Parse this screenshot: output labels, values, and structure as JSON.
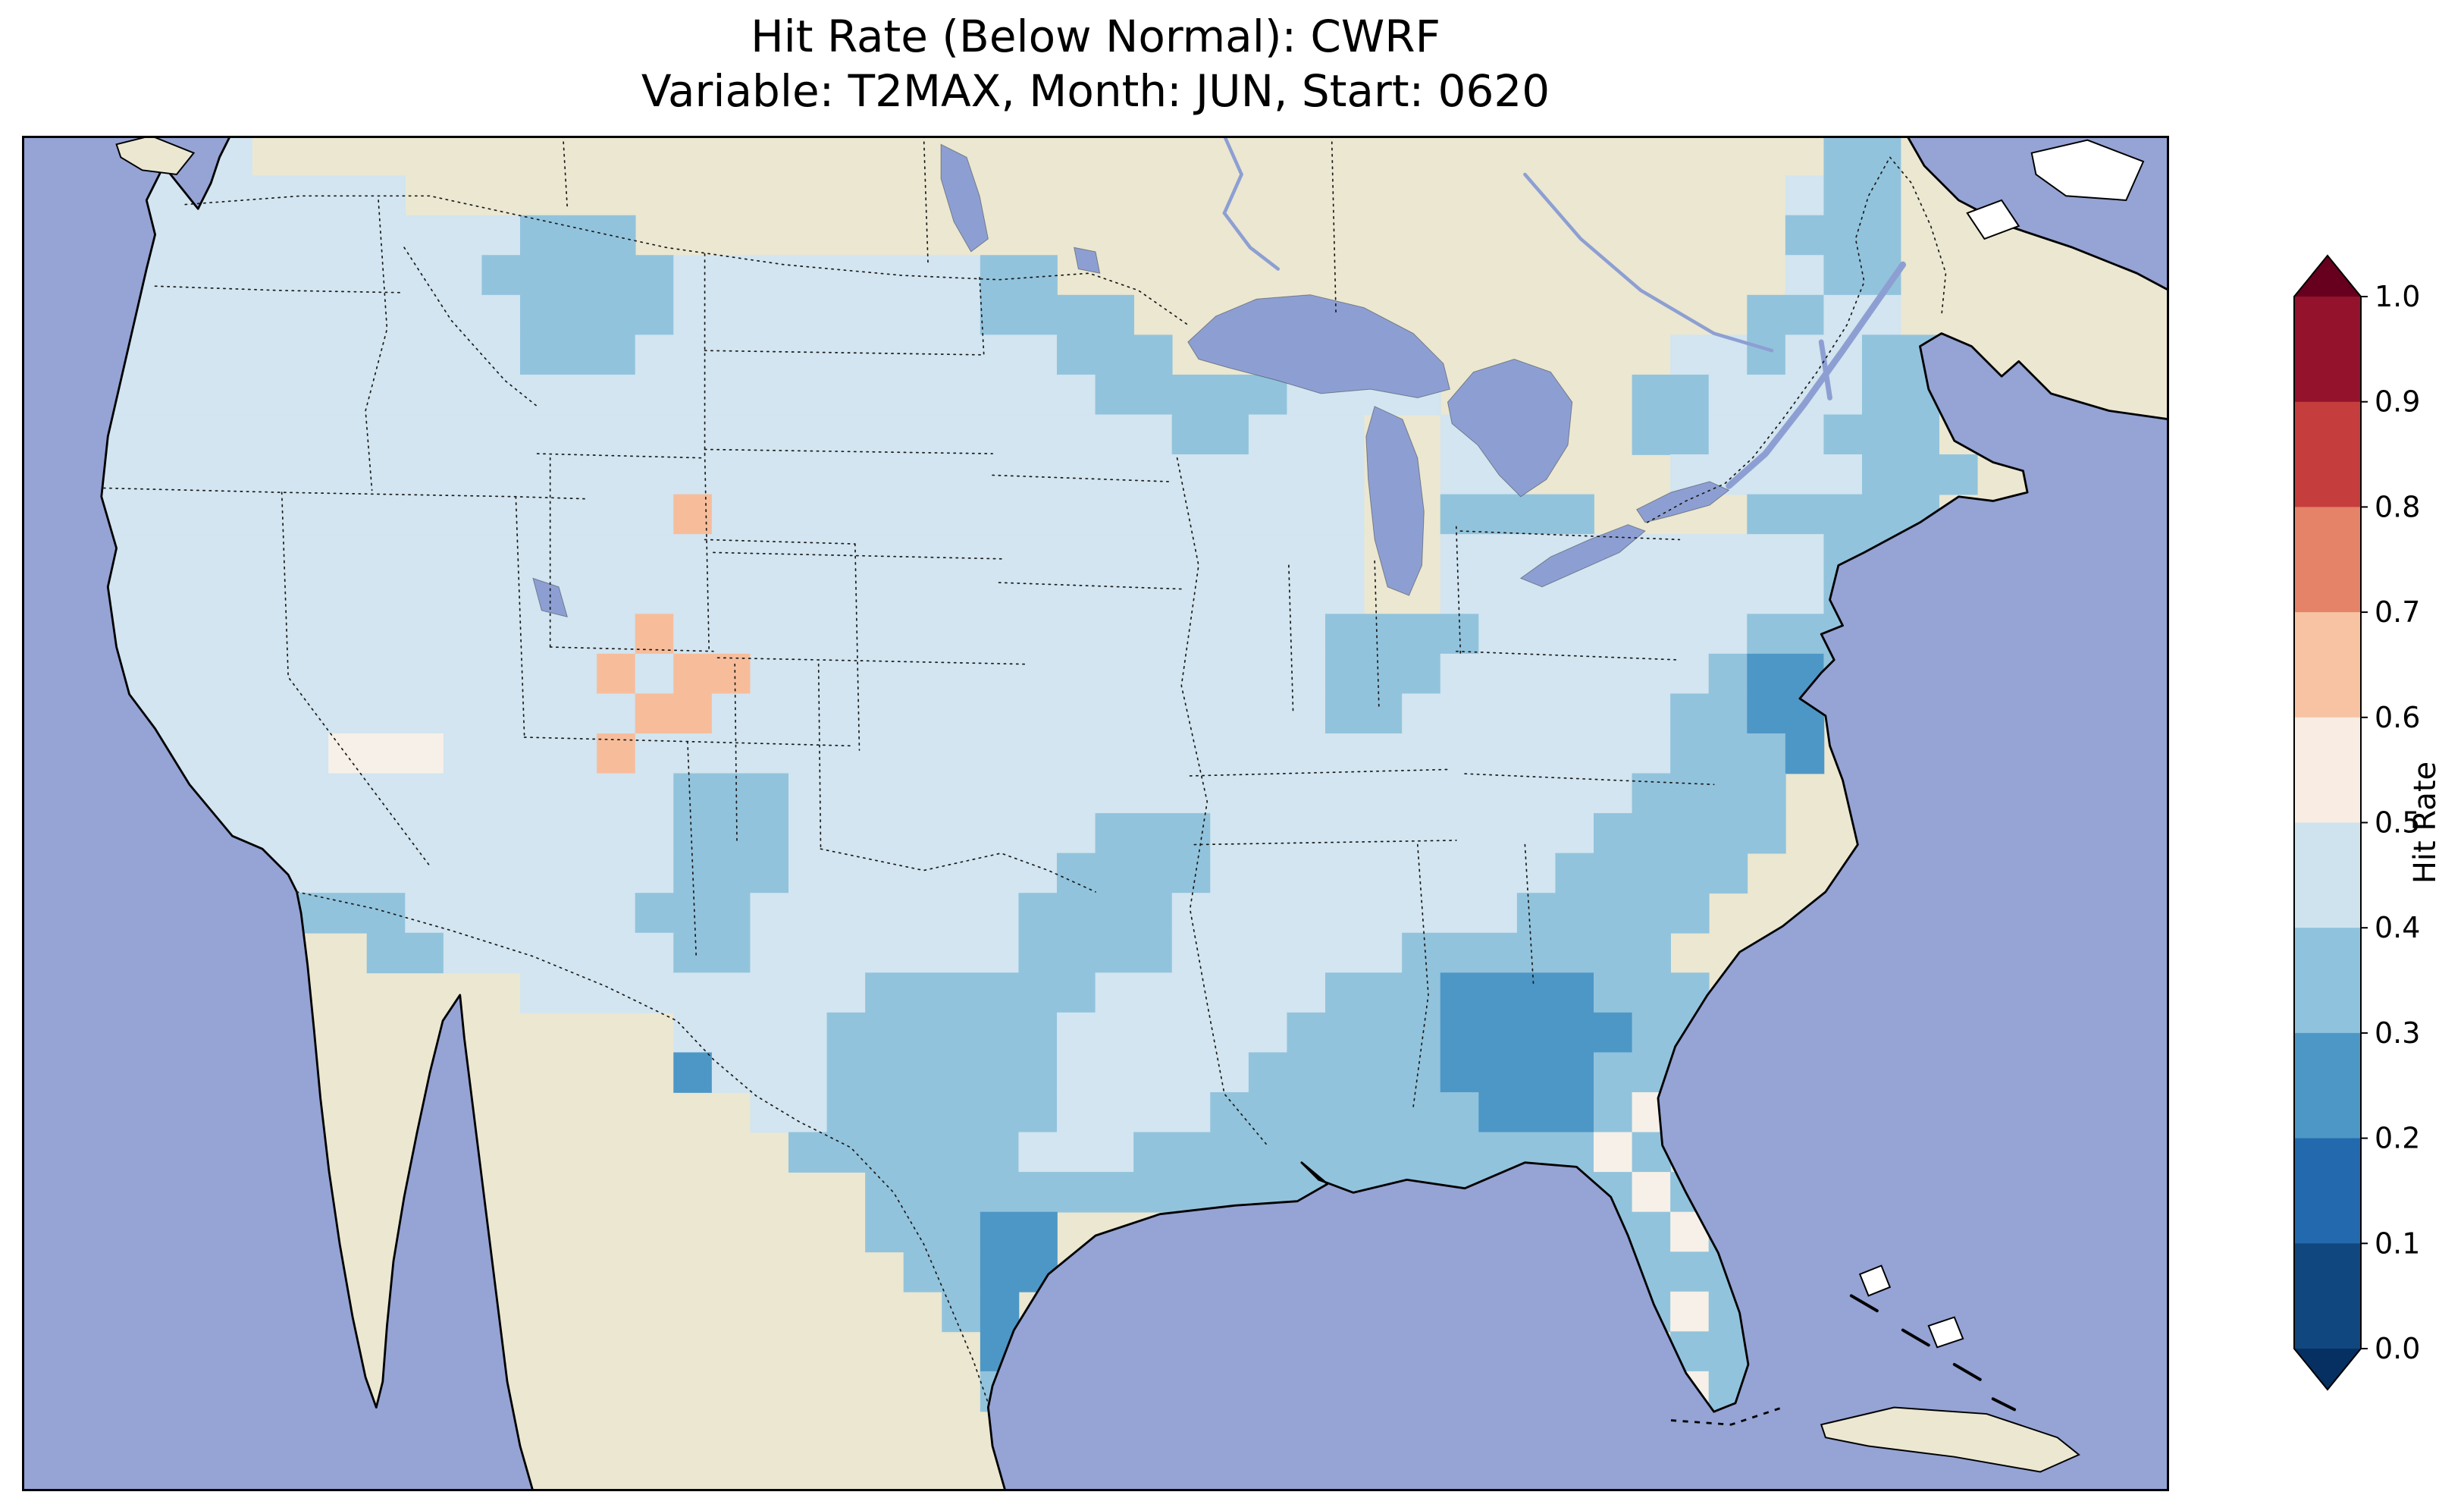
{
  "figure": {
    "title_line1": "Hit Rate (Below Normal): CWRF",
    "title_line2": "Variable: T2MAX, Month: JUN, Start: 0620"
  },
  "colorbar": {
    "label": "Hit Rate",
    "tick_labels_top_to_bottom": [
      "1.0",
      "0.9",
      "0.8",
      "0.7",
      "0.6",
      "0.5",
      "0.4",
      "0.3",
      "0.2",
      "0.1",
      "0.0"
    ],
    "band_colors_top_to_bottom": [
      "#94122b",
      "#c53e3d",
      "#e58368",
      "#f8c3a2",
      "#f9ece2",
      "#cfe3ef",
      "#8fc2dd",
      "#4d97c6",
      "#2369ad",
      "#11477f"
    ],
    "extend_over_color": "#67001f",
    "extend_under_color": "#053061"
  },
  "map": {
    "ocean_color": "#95a3d5",
    "land_color": "#ebe7d1",
    "lake_color": "#8d9fd2",
    "border_color": "#1a1a1a",
    "cell_palette": {
      "a": "#d2e5f0",
      "b": "#92c3dc",
      "c": "#4d97c6",
      "w": "#f6f0e8",
      "s": "#f7bd9b"
    },
    "cell_bins": {
      "a": "0.4-0.5",
      "b": "0.3-0.4",
      "c": "0.2-0.3",
      "w": "0.5-0.6",
      "s": "0.6-0.7"
    },
    "grid_cols": 56,
    "grid_rows": 34,
    "cells_rle": [
      [
        [
          3,
          "."
        ],
        [
          3,
          "a"
        ],
        [
          41,
          "."
        ],
        [
          2,
          "b"
        ],
        [
          7,
          "."
        ]
      ],
      [
        [
          3,
          "."
        ],
        [
          7,
          "a"
        ],
        [
          36,
          "."
        ],
        [
          1,
          "a"
        ],
        [
          2,
          "b"
        ],
        [
          7,
          "."
        ]
      ],
      [
        [
          2,
          "."
        ],
        [
          11,
          "a"
        ],
        [
          3,
          "b"
        ],
        [
          30,
          "."
        ],
        [
          3,
          "b"
        ],
        [
          7,
          "."
        ]
      ],
      [
        [
          2,
          "."
        ],
        [
          10,
          "a"
        ],
        [
          5,
          "b"
        ],
        [
          8,
          "a"
        ],
        [
          2,
          "b"
        ],
        [
          19,
          "."
        ],
        [
          1,
          "a"
        ],
        [
          2,
          "b"
        ],
        [
          7,
          "."
        ]
      ],
      [
        [
          2,
          "."
        ],
        [
          11,
          "a"
        ],
        [
          4,
          "b"
        ],
        [
          8,
          "a"
        ],
        [
          4,
          "b"
        ],
        [
          16,
          "."
        ],
        [
          2,
          "b"
        ],
        [
          2,
          "a"
        ],
        [
          7,
          "."
        ]
      ],
      [
        [
          2,
          "."
        ],
        [
          11,
          "a"
        ],
        [
          3,
          "b"
        ],
        [
          11,
          "a"
        ],
        [
          3,
          "b"
        ],
        [
          13,
          "."
        ],
        [
          2,
          "a"
        ],
        [
          1,
          "b"
        ],
        [
          2,
          "a"
        ],
        [
          2,
          "b"
        ],
        [
          6,
          "."
        ]
      ],
      [
        [
          2,
          "."
        ],
        [
          26,
          "a"
        ],
        [
          5,
          "b"
        ],
        [
          4,
          "a"
        ],
        [
          5,
          "."
        ],
        [
          2,
          "b"
        ],
        [
          4,
          "a"
        ],
        [
          2,
          "b"
        ],
        [
          6,
          "."
        ]
      ],
      [
        [
          2,
          "."
        ],
        [
          28,
          "a"
        ],
        [
          2,
          "b"
        ],
        [
          3,
          "a"
        ],
        [
          2,
          "."
        ],
        [
          2,
          "a"
        ],
        [
          3,
          "."
        ],
        [
          2,
          "b"
        ],
        [
          3,
          "a"
        ],
        [
          3,
          "b"
        ],
        [
          6,
          "."
        ]
      ],
      [
        [
          2,
          "."
        ],
        [
          33,
          "a"
        ],
        [
          2,
          "."
        ],
        [
          2,
          "a"
        ],
        [
          4,
          "."
        ],
        [
          5,
          "a"
        ],
        [
          3,
          "b"
        ],
        [
          5,
          "."
        ]
      ],
      [
        [
          2,
          "."
        ],
        [
          15,
          "a"
        ],
        [
          1,
          "s"
        ],
        [
          17,
          "a"
        ],
        [
          2,
          "."
        ],
        [
          4,
          "b"
        ],
        [
          4,
          "."
        ],
        [
          5,
          "b"
        ],
        [
          6,
          "."
        ]
      ],
      [
        [
          2,
          "."
        ],
        [
          33,
          "a"
        ],
        [
          2,
          "."
        ],
        [
          10,
          "a"
        ],
        [
          2,
          "b"
        ],
        [
          7,
          "."
        ]
      ],
      [
        [
          2,
          "."
        ],
        [
          33,
          "a"
        ],
        [
          2,
          "."
        ],
        [
          10,
          "a"
        ],
        [
          1,
          "b"
        ],
        [
          8,
          "."
        ]
      ],
      [
        [
          2,
          "."
        ],
        [
          14,
          "a"
        ],
        [
          1,
          "s"
        ],
        [
          17,
          "a"
        ],
        [
          4,
          "b"
        ],
        [
          7,
          "a"
        ],
        [
          3,
          "b"
        ],
        [
          8,
          "."
        ]
      ],
      [
        [
          2,
          "."
        ],
        [
          13,
          "a"
        ],
        [
          1,
          "s"
        ],
        [
          1,
          "a"
        ],
        [
          2,
          "s"
        ],
        [
          15,
          "a"
        ],
        [
          3,
          "b"
        ],
        [
          7,
          "a"
        ],
        [
          1,
          "b"
        ],
        [
          2,
          "c"
        ],
        [
          1,
          "b"
        ],
        [
          8,
          "."
        ]
      ],
      [
        [
          2,
          "."
        ],
        [
          14,
          "a"
        ],
        [
          2,
          "s"
        ],
        [
          16,
          "a"
        ],
        [
          2,
          "b"
        ],
        [
          7,
          "a"
        ],
        [
          2,
          "b"
        ],
        [
          2,
          "c"
        ],
        [
          9,
          "."
        ]
      ],
      [
        [
          2,
          "."
        ],
        [
          6,
          "a"
        ],
        [
          3,
          "w"
        ],
        [
          4,
          "a"
        ],
        [
          1,
          "s"
        ],
        [
          27,
          "a"
        ],
        [
          3,
          "b"
        ],
        [
          1,
          "c"
        ],
        [
          9,
          "."
        ]
      ],
      [
        [
          2,
          "."
        ],
        [
          15,
          "a"
        ],
        [
          3,
          "b"
        ],
        [
          22,
          "a"
        ],
        [
          4,
          "b"
        ],
        [
          10,
          "."
        ]
      ],
      [
        [
          2,
          "."
        ],
        [
          15,
          "a"
        ],
        [
          3,
          "b"
        ],
        [
          8,
          "a"
        ],
        [
          3,
          "b"
        ],
        [
          10,
          "a"
        ],
        [
          5,
          "b"
        ],
        [
          10,
          "."
        ]
      ],
      [
        [
          3,
          "."
        ],
        [
          14,
          "a"
        ],
        [
          3,
          "b"
        ],
        [
          7,
          "a"
        ],
        [
          4,
          "b"
        ],
        [
          9,
          "a"
        ],
        [
          5,
          "b"
        ],
        [
          11,
          "."
        ]
      ],
      [
        [
          7,
          "."
        ],
        [
          3,
          "b"
        ],
        [
          6,
          "a"
        ],
        [
          3,
          "b"
        ],
        [
          7,
          "a"
        ],
        [
          4,
          "b"
        ],
        [
          9,
          "a"
        ],
        [
          5,
          "b"
        ],
        [
          12,
          "."
        ]
      ],
      [
        [
          9,
          "."
        ],
        [
          2,
          "b"
        ],
        [
          6,
          "a"
        ],
        [
          2,
          "b"
        ],
        [
          7,
          "a"
        ],
        [
          4,
          "b"
        ],
        [
          6,
          "a"
        ],
        [
          7,
          "b"
        ],
        [
          13,
          "."
        ]
      ],
      [
        [
          13,
          "."
        ],
        [
          9,
          "a"
        ],
        [
          6,
          "b"
        ],
        [
          6,
          "a"
        ],
        [
          3,
          "b"
        ],
        [
          4,
          "c"
        ],
        [
          3,
          "b"
        ],
        [
          12,
          "."
        ]
      ],
      [
        [
          17,
          "."
        ],
        [
          4,
          "a"
        ],
        [
          6,
          "b"
        ],
        [
          6,
          "a"
        ],
        [
          4,
          "b"
        ],
        [
          5,
          "c"
        ],
        [
          2,
          "b"
        ],
        [
          12,
          "."
        ]
      ],
      [
        [
          17,
          "."
        ],
        [
          1,
          "c"
        ],
        [
          3,
          "a"
        ],
        [
          6,
          "b"
        ],
        [
          5,
          "a"
        ],
        [
          5,
          "b"
        ],
        [
          4,
          "c"
        ],
        [
          3,
          "b"
        ],
        [
          12,
          "."
        ]
      ],
      [
        [
          19,
          "."
        ],
        [
          2,
          "a"
        ],
        [
          6,
          "b"
        ],
        [
          4,
          "a"
        ],
        [
          7,
          "b"
        ],
        [
          3,
          "c"
        ],
        [
          1,
          "b"
        ],
        [
          1,
          "w"
        ],
        [
          1,
          "b"
        ],
        [
          12,
          "."
        ]
      ],
      [
        [
          20,
          "."
        ],
        [
          6,
          "b"
        ],
        [
          3,
          "a"
        ],
        [
          12,
          "b"
        ],
        [
          1,
          "w"
        ],
        [
          1,
          "b"
        ],
        [
          13,
          "."
        ]
      ],
      [
        [
          22,
          "."
        ],
        [
          20,
          "b"
        ],
        [
          1,
          "w"
        ],
        [
          1,
          "b"
        ],
        [
          12,
          "."
        ]
      ],
      [
        [
          22,
          "."
        ],
        [
          3,
          "b"
        ],
        [
          2,
          "c"
        ],
        [
          14,
          "."
        ],
        [
          2,
          "b"
        ],
        [
          1,
          "w"
        ],
        [
          1,
          "b"
        ],
        [
          11,
          "."
        ]
      ],
      [
        [
          23,
          "."
        ],
        [
          2,
          "b"
        ],
        [
          2,
          "c"
        ],
        [
          15,
          "."
        ],
        [
          3,
          "b"
        ],
        [
          11,
          "."
        ]
      ],
      [
        [
          24,
          "."
        ],
        [
          1,
          "b"
        ],
        [
          1,
          "c"
        ],
        [
          16,
          "."
        ],
        [
          1,
          "b"
        ],
        [
          1,
          "w"
        ],
        [
          1,
          "b"
        ],
        [
          11,
          "."
        ]
      ],
      [
        [
          25,
          "."
        ],
        [
          1,
          "c"
        ],
        [
          17,
          "."
        ],
        [
          2,
          "b"
        ],
        [
          11,
          "."
        ]
      ],
      [
        [
          25,
          "."
        ],
        [
          1,
          "b"
        ],
        [
          16,
          "."
        ],
        [
          1,
          "s"
        ],
        [
          1,
          "w"
        ],
        [
          2,
          "b"
        ],
        [
          10,
          "."
        ]
      ],
      [
        [
          56,
          "."
        ]
      ],
      [
        [
          56,
          "."
        ]
      ]
    ]
  },
  "chart_data": {
    "type": "heatmap",
    "title": "Hit Rate (Below Normal): CWRF",
    "subtitle": "Variable: T2MAX, Month: JUN, Start: 0620",
    "colorbar_label": "Hit Rate",
    "colorbar_ticks": [
      1.0,
      0.9,
      0.8,
      0.7,
      0.6,
      0.5,
      0.4,
      0.3,
      0.2,
      0.1,
      0.0
    ],
    "value_range": [
      0.0,
      1.0
    ],
    "bin_width": 0.1,
    "colormap": "RdBu_r, extend both (dark blue low, dark red high)",
    "region": "Contiguous United States gridded field",
    "grid_encoding": "map.cells_rle run-length rows; codes: a=0.4-0.5, b=0.3-0.4, c=0.2-0.3, w=0.5-0.6, s=0.6-0.7 hit rate, .=no data"
  }
}
